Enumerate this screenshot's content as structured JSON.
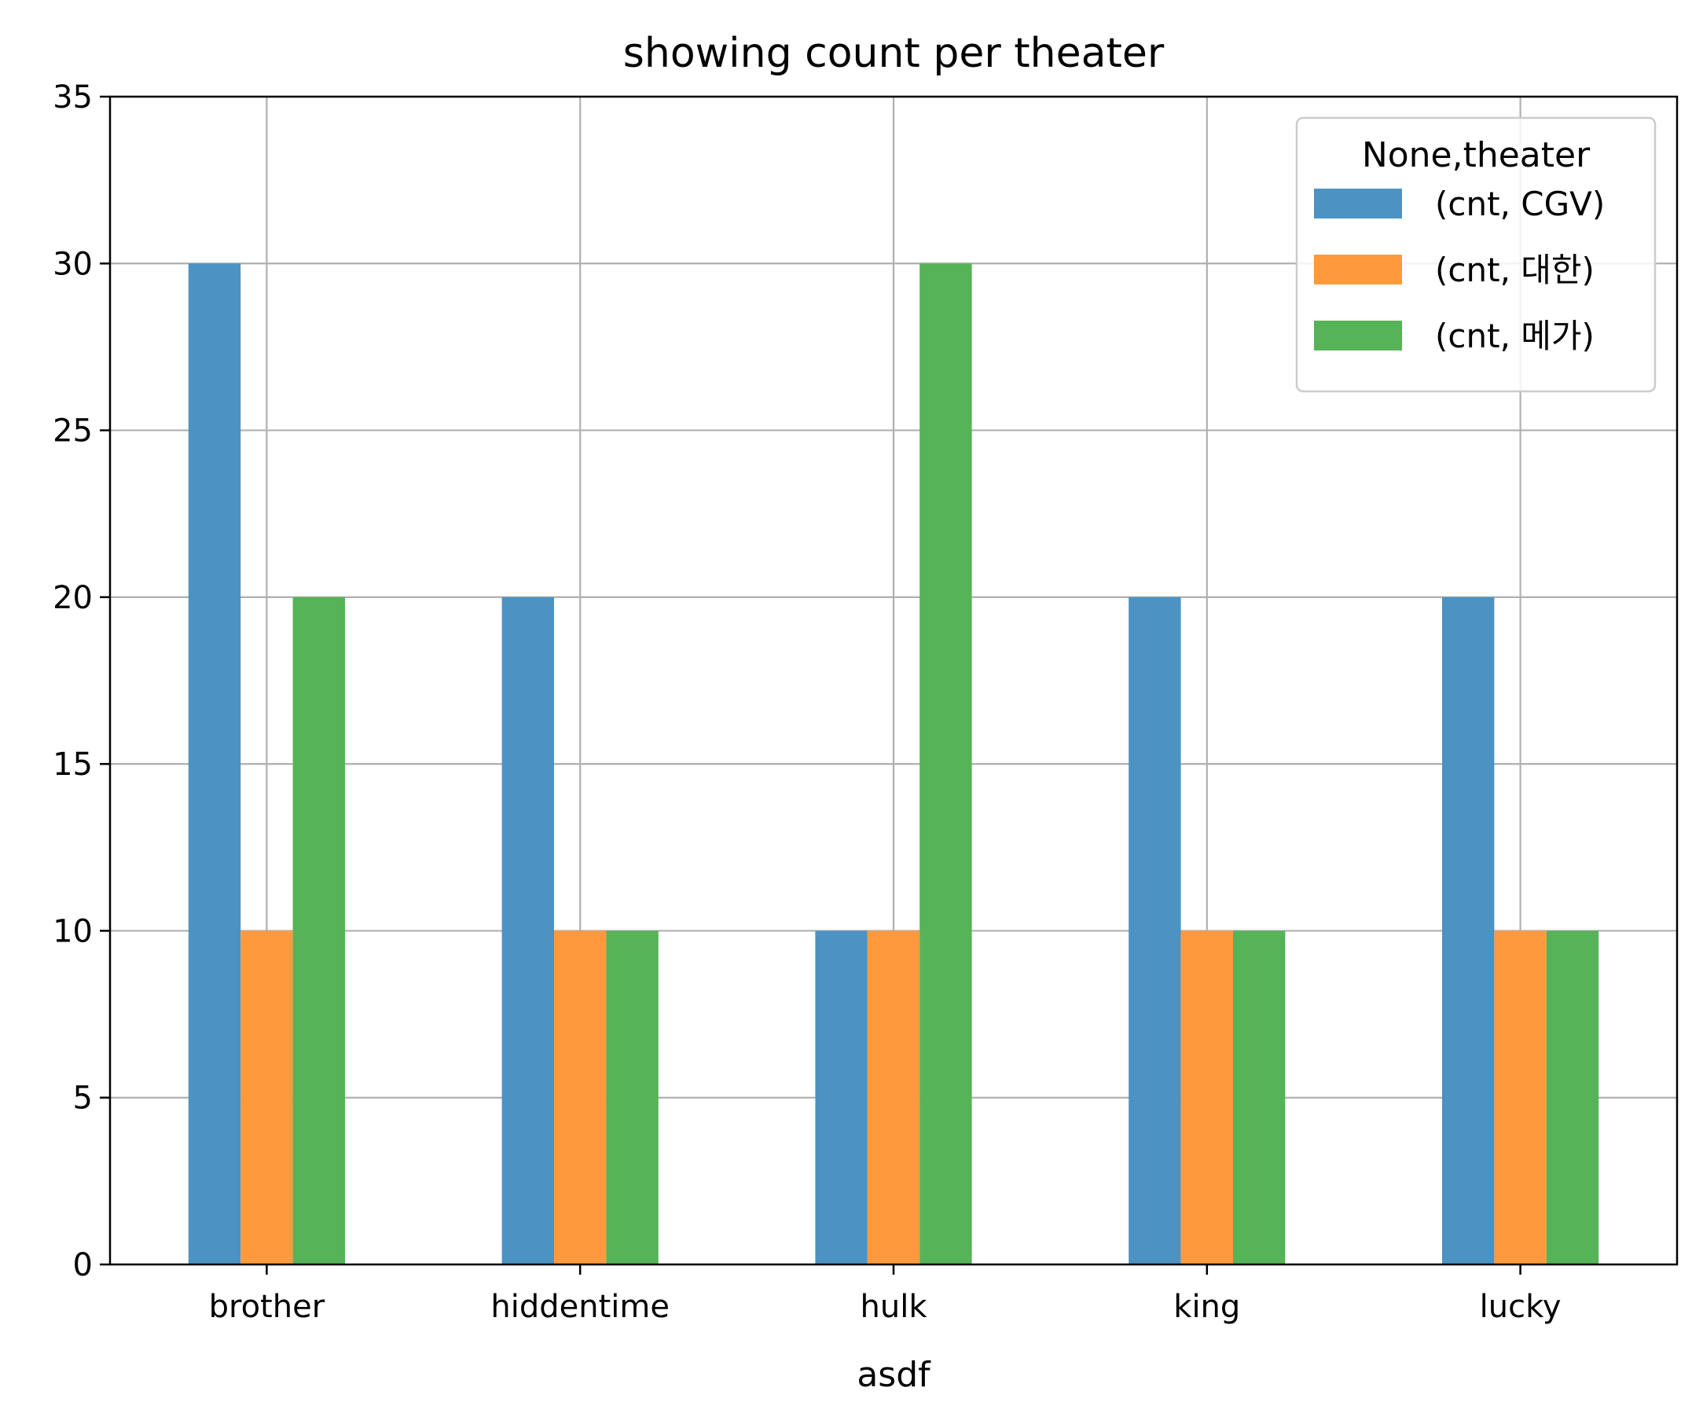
{
  "chart_data": {
    "type": "bar",
    "title": "showing count per theater",
    "xlabel": "asdf",
    "ylabel": "",
    "categories": [
      "brother",
      "hiddentime",
      "hulk",
      "king",
      "lucky"
    ],
    "ylim": [
      0,
      35
    ],
    "yticks": [
      0,
      5,
      10,
      15,
      20,
      25,
      30,
      35
    ],
    "grid": true,
    "legend": {
      "title": "None,theater",
      "placement": "top-right"
    },
    "series": [
      {
        "name": "(cnt, CGV)",
        "color": "#4c92c3",
        "values": [
          30,
          20,
          10,
          20,
          20
        ]
      },
      {
        "name": "(cnt, 대한)",
        "color": "#ff993e",
        "values": [
          10,
          10,
          10,
          10,
          10
        ]
      },
      {
        "name": "(cnt, 메가)",
        "color": "#56b357",
        "values": [
          20,
          10,
          30,
          10,
          10
        ]
      }
    ]
  }
}
